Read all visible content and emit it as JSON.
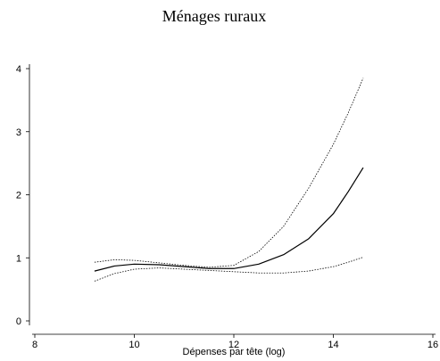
{
  "chart_data": {
    "type": "line",
    "title": "Ménages ruraux",
    "x_label": "Dépenses par tête (log)",
    "x": [
      9.2,
      9.6,
      10,
      10.5,
      11,
      11.5,
      12,
      12.5,
      13,
      13.5,
      14,
      14.3,
      14.6
    ],
    "series": [
      {
        "color": "#000000",
        "style": "solid",
        "values": [
          0.79,
          0.87,
          0.9,
          0.89,
          0.86,
          0.83,
          0.83,
          0.9,
          1.05,
          1.3,
          1.7,
          2.05,
          2.43
        ]
      },
      {
        "color": "#000000",
        "style": "dotted",
        "values": [
          0.93,
          0.97,
          0.96,
          0.92,
          0.88,
          0.85,
          0.88,
          1.1,
          1.5,
          2.1,
          2.8,
          3.3,
          3.85
        ]
      },
      {
        "color": "#000000",
        "style": "dotted",
        "values": [
          0.63,
          0.75,
          0.82,
          0.84,
          0.82,
          0.8,
          0.78,
          0.76,
          0.76,
          0.79,
          0.86,
          0.93,
          1.01
        ]
      }
    ],
    "xlim": [
      8,
      16
    ],
    "xticks": [
      8,
      10,
      12,
      14,
      16
    ],
    "ylim": [
      0,
      4
    ],
    "yticks": [
      0,
      1,
      2,
      3,
      4
    ],
    "grid": false
  }
}
